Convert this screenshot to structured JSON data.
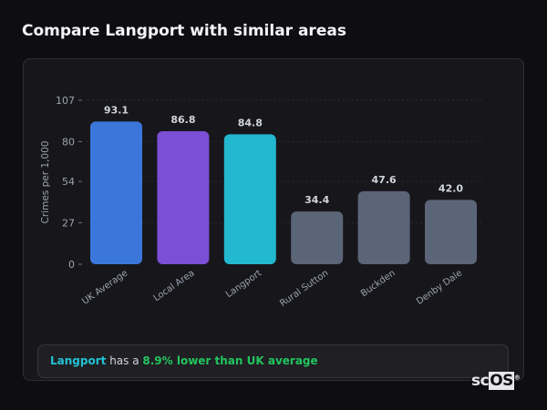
{
  "title": "Compare Langport with similar areas",
  "chart_data": {
    "type": "bar",
    "title": "",
    "xlabel": "",
    "ylabel": "Crimes per 1,000",
    "ylim": [
      0,
      107
    ],
    "yticks": [
      0,
      27,
      54,
      80,
      107
    ],
    "grid": true,
    "categories": [
      "UK Average",
      "Local Area",
      "Langport",
      "Rural Sutton",
      "Buckden",
      "Denby Dale"
    ],
    "values": [
      93.1,
      86.8,
      84.8,
      34.4,
      47.6,
      42.0
    ],
    "value_labels": [
      "93.1",
      "86.8",
      "84.8",
      "34.4",
      "47.6",
      "42.0"
    ],
    "colors": [
      "#3b76db",
      "#7b4fd6",
      "#22b8cf",
      "#5b6578",
      "#5b6578",
      "#5b6578"
    ]
  },
  "summary": {
    "place": "Langport",
    "middle": " has a ",
    "comparison": "8.9% lower than UK average"
  },
  "logo": {
    "text_a": "sc",
    "text_b": "OS",
    "mark": "®"
  }
}
